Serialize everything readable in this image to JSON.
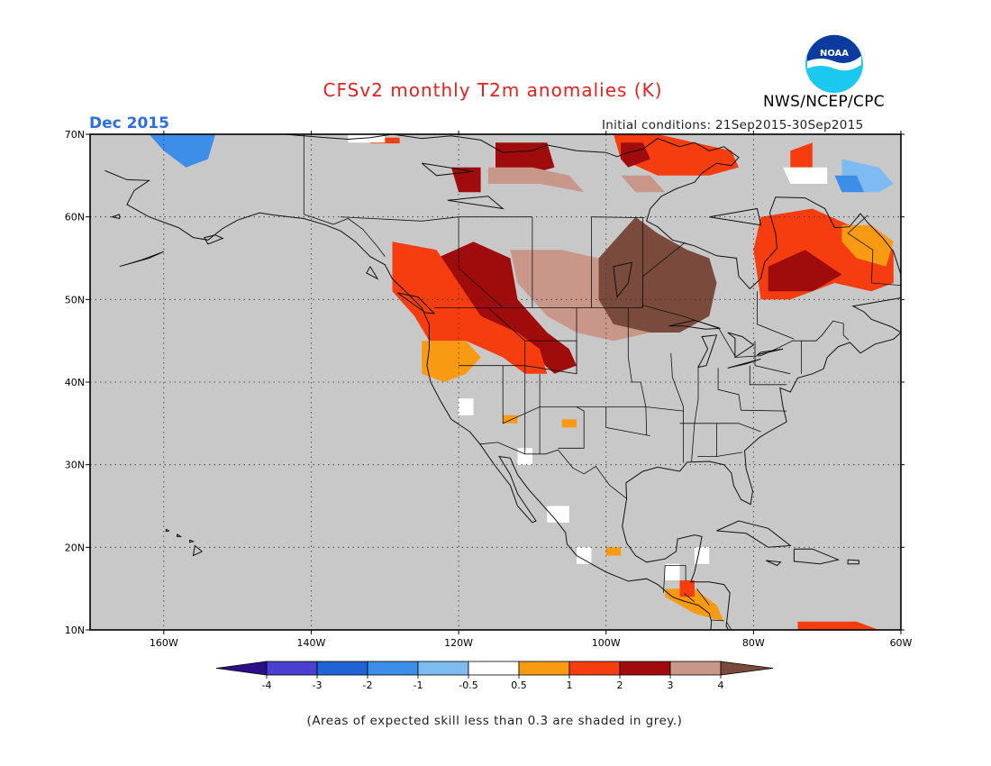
{
  "header": {
    "title": "CFSv2 monthly T2m anomalies (K)",
    "month_label": "Dec 2015",
    "initial_conditions": "Initial conditions: 21Sep2015-30Sep2015",
    "agency": "NWS/NCEP/CPC",
    "logo_text": "NOAA"
  },
  "map": {
    "lon_range": [
      -170,
      -60
    ],
    "lat_range": [
      10,
      70
    ],
    "lon_ticks": [
      {
        "value": -160,
        "label": "160W"
      },
      {
        "value": -140,
        "label": "140W"
      },
      {
        "value": -120,
        "label": "120W"
      },
      {
        "value": -100,
        "label": "100W"
      },
      {
        "value": -80,
        "label": "80W"
      },
      {
        "value": -60,
        "label": "60W"
      }
    ],
    "lat_ticks": [
      {
        "value": 70,
        "label": "70N"
      },
      {
        "value": 60,
        "label": "60N"
      },
      {
        "value": 50,
        "label": "50N"
      },
      {
        "value": 40,
        "label": "40N"
      },
      {
        "value": 30,
        "label": "30N"
      },
      {
        "value": 20,
        "label": "20N"
      },
      {
        "value": 10,
        "label": "10N"
      }
    ],
    "gridlines": "dotted",
    "background_color": "#c8c8c8",
    "skill_mask_color": "grey"
  },
  "colorbar": {
    "labels": [
      "-4",
      "-3",
      "-2",
      "-1",
      "-0.5",
      "0.5",
      "1",
      "2",
      "3",
      "4"
    ],
    "colors": [
      "#2b0f8a",
      "#4a3fcf",
      "#1f63d6",
      "#3d8ee8",
      "#7dbbf2",
      "#ffffff",
      "#f89a12",
      "#f53d10",
      "#a00b0b",
      "#c9968a",
      "#7a4a3c"
    ]
  },
  "anomaly_regions": [
    {
      "category": "2 to 3",
      "color": "#a00b0b",
      "lon_lat": [
        [
          -123,
          55
        ],
        [
          -118,
          57
        ],
        [
          -113,
          55
        ],
        [
          -112,
          50
        ],
        [
          -108,
          46
        ],
        [
          -105,
          44
        ],
        [
          -104,
          42
        ],
        [
          -107,
          41
        ],
        [
          -112,
          45
        ],
        [
          -115,
          47
        ],
        [
          -119,
          49
        ],
        [
          -122,
          51
        ]
      ]
    },
    {
      "category": "1 to 2",
      "color": "#f53d10",
      "lon_lat": [
        [
          -129,
          57
        ],
        [
          -123,
          56
        ],
        [
          -120,
          52
        ],
        [
          -117,
          48
        ],
        [
          -112,
          46
        ],
        [
          -109,
          44
        ],
        [
          -108,
          41
        ],
        [
          -111,
          41
        ],
        [
          -114,
          43
        ],
        [
          -119,
          45
        ],
        [
          -124,
          45
        ],
        [
          -126,
          48
        ],
        [
          -129,
          51
        ]
      ]
    },
    {
      "category": "0.5 to 1",
      "color": "#f89a12",
      "lon_lat": [
        [
          -125,
          45
        ],
        [
          -119,
          45
        ],
        [
          -117,
          43
        ],
        [
          -119,
          41
        ],
        [
          -122,
          40
        ],
        [
          -125,
          41
        ]
      ]
    },
    {
      "category": "3 to 4",
      "color": "#c9968a",
      "lon_lat": [
        [
          -113,
          56
        ],
        [
          -106,
          56
        ],
        [
          -101,
          55
        ],
        [
          -99,
          50
        ],
        [
          -96,
          48
        ],
        [
          -94,
          46
        ],
        [
          -99,
          45
        ],
        [
          -104,
          46
        ],
        [
          -108,
          48
        ],
        [
          -112,
          52
        ]
      ]
    },
    {
      "category": "> 4",
      "color": "#7a4a3c",
      "lon_lat": [
        [
          -101,
          55
        ],
        [
          -96,
          60
        ],
        [
          -93,
          58
        ],
        [
          -89,
          56
        ],
        [
          -86,
          55
        ],
        [
          -85,
          52
        ],
        [
          -86,
          48
        ],
        [
          -90,
          46
        ],
        [
          -94,
          46
        ],
        [
          -99,
          47
        ],
        [
          -101,
          50
        ]
      ]
    },
    {
      "category": "1 to 2",
      "color": "#f53d10",
      "lon_lat": [
        [
          -79,
          60
        ],
        [
          -72,
          61
        ],
        [
          -67,
          59
        ],
        [
          -61,
          56
        ],
        [
          -61,
          52
        ],
        [
          -64,
          51
        ],
        [
          -69,
          52
        ],
        [
          -75,
          50
        ],
        [
          -79,
          50
        ],
        [
          -80,
          56
        ]
      ]
    },
    {
      "category": "2 to 3",
      "color": "#a00b0b",
      "lon_lat": [
        [
          -78,
          54
        ],
        [
          -73,
          56
        ],
        [
          -68,
          53
        ],
        [
          -72,
          51
        ],
        [
          -78,
          51
        ]
      ]
    },
    {
      "category": "0.5 to 1",
      "color": "#f89a12",
      "lon_lat": [
        [
          -68,
          59
        ],
        [
          -64,
          59
        ],
        [
          -61,
          57
        ],
        [
          -62,
          54
        ],
        [
          -66,
          55
        ],
        [
          -68,
          57
        ]
      ]
    },
    {
      "category": "1 to 2",
      "color": "#f53d10",
      "lon_lat": [
        [
          -99,
          70
        ],
        [
          -93,
          70
        ],
        [
          -88,
          69
        ],
        [
          -83,
          68
        ],
        [
          -82,
          66
        ],
        [
          -86,
          65
        ],
        [
          -93,
          65
        ],
        [
          -98,
          67
        ]
      ]
    },
    {
      "category": "2 to 3",
      "color": "#a00b0b",
      "lon_lat": [
        [
          -98,
          69
        ],
        [
          -95,
          69
        ],
        [
          -94,
          67
        ],
        [
          -97,
          66
        ],
        [
          -98,
          67
        ]
      ]
    },
    {
      "category": "3 to 4",
      "color": "#c9968a",
      "lon_lat": [
        [
          -98,
          65
        ],
        [
          -94,
          65
        ],
        [
          -92,
          63
        ],
        [
          -96,
          63
        ]
      ]
    },
    {
      "category": "2 to 3",
      "color": "#a00b0b",
      "lon_lat": [
        [
          -115,
          69
        ],
        [
          -108,
          69
        ],
        [
          -107,
          66
        ],
        [
          -111,
          65
        ],
        [
          -115,
          66
        ]
      ]
    },
    {
      "category": "3 to 4",
      "color": "#c9968a",
      "lon_lat": [
        [
          -116,
          66
        ],
        [
          -110,
          66
        ],
        [
          -105,
          65
        ],
        [
          -103,
          63
        ],
        [
          -109,
          64
        ],
        [
          -116,
          64
        ]
      ]
    },
    {
      "category": "2 to 3",
      "color": "#a00b0b",
      "lon_lat": [
        [
          -121,
          66
        ],
        [
          -117,
          66
        ],
        [
          -117,
          63
        ],
        [
          -120,
          63
        ]
      ]
    },
    {
      "category": "1 to 2",
      "color": "#f53d10",
      "lon_lat": [
        [
          -132,
          69.6
        ],
        [
          -128,
          69.6
        ],
        [
          -128,
          68.9
        ],
        [
          -132,
          68.9
        ]
      ]
    },
    {
      "category": "-1 to -0.5",
      "color": "#7dbbf2",
      "lon_lat": [
        [
          -68,
          67
        ],
        [
          -63,
          66
        ],
        [
          -61,
          64
        ],
        [
          -63,
          63
        ],
        [
          -66,
          63
        ],
        [
          -68,
          65
        ]
      ]
    },
    {
      "category": "-2 to -1",
      "color": "#3d8ee8",
      "lon_lat": [
        [
          -69,
          65
        ],
        [
          -66,
          65
        ],
        [
          -65,
          63
        ],
        [
          -68,
          63
        ]
      ]
    },
    {
      "category": "-2 to -1",
      "color": "#3d8ee8",
      "lon_lat": [
        [
          -162,
          70
        ],
        [
          -153,
          70
        ],
        [
          -154,
          67
        ],
        [
          -157,
          66
        ],
        [
          -160,
          68
        ]
      ]
    },
    {
      "category": "1 to 2",
      "color": "#f53d10",
      "lon_lat": [
        [
          -75,
          68
        ],
        [
          -72,
          69
        ],
        [
          -72,
          66
        ],
        [
          -75,
          66
        ]
      ]
    },
    {
      "category": "-0.5 to 0.5",
      "color": "#ffffff",
      "lon_lat": [
        [
          -76,
          66
        ],
        [
          -70,
          66
        ],
        [
          -70,
          64
        ],
        [
          -75,
          64
        ]
      ]
    },
    {
      "category": "0.5 to 1",
      "color": "#f89a12",
      "lon_lat": [
        [
          -92,
          15
        ],
        [
          -88,
          15
        ],
        [
          -85,
          13
        ],
        [
          -84,
          11
        ],
        [
          -88,
          12
        ],
        [
          -92,
          14
        ]
      ]
    },
    {
      "category": "1 to 2",
      "color": "#f53d10",
      "lon_lat": [
        [
          -90,
          16
        ],
        [
          -88,
          16
        ],
        [
          -88,
          14
        ],
        [
          -90,
          14
        ]
      ]
    },
    {
      "category": "1 to 2",
      "color": "#f53d10",
      "lon_lat": [
        [
          -74,
          11
        ],
        [
          -66,
          11
        ],
        [
          -63,
          10
        ],
        [
          -74,
          10
        ]
      ]
    },
    {
      "category": "0.5 to 1",
      "color": "#f89a12",
      "lon_lat": [
        [
          -114,
          36
        ],
        [
          -112,
          36
        ],
        [
          -112,
          35
        ],
        [
          -114,
          35
        ]
      ]
    },
    {
      "category": "0.5 to 1",
      "color": "#f89a12",
      "lon_lat": [
        [
          -106,
          35.5
        ],
        [
          -104,
          35.5
        ],
        [
          -104,
          34.5
        ],
        [
          -106,
          34.5
        ]
      ]
    },
    {
      "category": "0.5 to 1",
      "color": "#f89a12",
      "lon_lat": [
        [
          -100,
          20
        ],
        [
          -98,
          20
        ],
        [
          -98,
          19
        ],
        [
          -100,
          19
        ]
      ]
    },
    {
      "category": "-0.5 to 0.5",
      "color": "#ffffff",
      "lon_lat": [
        [
          -108,
          25
        ],
        [
          -105,
          25
        ],
        [
          -105,
          23
        ],
        [
          -108,
          23
        ]
      ]
    },
    {
      "category": "-0.5 to 0.5",
      "color": "#ffffff",
      "lon_lat": [
        [
          -112,
          32
        ],
        [
          -110,
          32
        ],
        [
          -110,
          30
        ],
        [
          -112,
          30
        ]
      ]
    },
    {
      "category": "-0.5 to 0.5",
      "color": "#ffffff",
      "lon_lat": [
        [
          -120,
          38
        ],
        [
          -118,
          38
        ],
        [
          -118,
          36
        ],
        [
          -120,
          36
        ]
      ]
    },
    {
      "category": "-0.5 to 0.5",
      "color": "#ffffff",
      "lon_lat": [
        [
          -104,
          20
        ],
        [
          -102,
          20
        ],
        [
          -102,
          18
        ],
        [
          -104,
          18
        ]
      ]
    },
    {
      "category": "-0.5 to 0.5",
      "color": "#ffffff",
      "lon_lat": [
        [
          -92,
          18
        ],
        [
          -90,
          18
        ],
        [
          -90,
          16
        ],
        [
          -92,
          16
        ]
      ]
    },
    {
      "category": "-0.5 to 0.5",
      "color": "#ffffff",
      "lon_lat": [
        [
          -88,
          20
        ],
        [
          -86,
          20
        ],
        [
          -86,
          18
        ],
        [
          -88,
          18
        ]
      ]
    },
    {
      "category": "-0.5 to 0.5",
      "color": "#ffffff",
      "lon_lat": [
        [
          -135,
          70
        ],
        [
          -130,
          70
        ],
        [
          -130,
          69
        ],
        [
          -135,
          69
        ]
      ]
    }
  ],
  "footnote": "(Areas of expected skill less than 0.3 are shaded in grey.)"
}
